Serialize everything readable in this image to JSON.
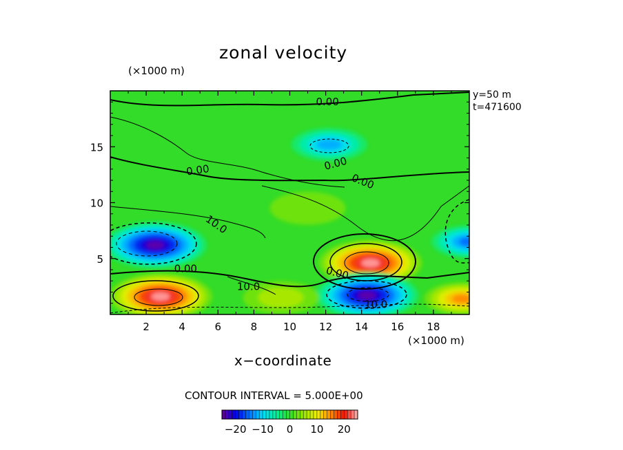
{
  "chart_data": {
    "type": "heatmap",
    "title": "zonal velocity",
    "xlabel": "x−coordinate",
    "x_unit": "(×1000 m)",
    "y_unit": "(×1000 m)",
    "xlim": [
      0,
      20
    ],
    "ylim": [
      0,
      20
    ],
    "x_ticks": [
      "2",
      "4",
      "6",
      "8",
      "10",
      "12",
      "14",
      "16",
      "18"
    ],
    "y_ticks": [
      "5",
      "10",
      "15"
    ],
    "annotations": [
      "y=50 m",
      "t=471600"
    ],
    "contour_interval": "CONTOUR INTERVAL = 5.000E+00",
    "contour_labels": [
      "0.00",
      "0.00",
      "0.00",
      "0.00",
      "0.00",
      "0.00",
      "10.0",
      "10.0",
      "10.0"
    ],
    "colorbar": {
      "range": [
        -25,
        25
      ],
      "ticks": [
        "−20",
        "−10",
        "0",
        "10",
        "20"
      ],
      "colormap": "rainbow (purple-blue-cyan-green-yellow-red-white)"
    },
    "features": [
      {
        "x": 2.5,
        "y": 6.2,
        "value": -25
      },
      {
        "x": 20,
        "y": 6.5,
        "value": -15
      },
      {
        "x": 14.5,
        "y": 4.6,
        "value": 26
      },
      {
        "x": 2.8,
        "y": 1.6,
        "value": 25
      },
      {
        "x": 19.6,
        "y": 1.4,
        "value": 15
      },
      {
        "x": 14.3,
        "y": 1.7,
        "value": -24
      },
      {
        "x": 12.2,
        "y": 15.2,
        "value": -12
      },
      {
        "x": 9.5,
        "y": 1.5,
        "value": 8
      },
      {
        "x": 11.0,
        "y": 9.5,
        "value": 5
      }
    ],
    "grid": false
  }
}
